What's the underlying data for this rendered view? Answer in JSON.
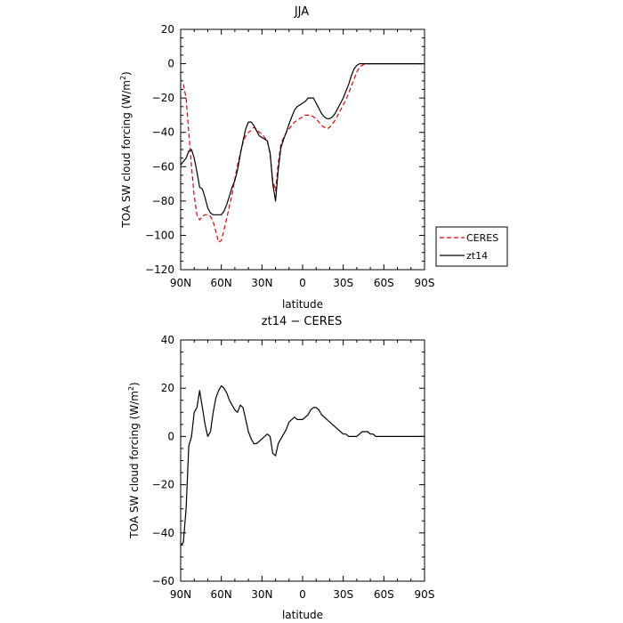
{
  "chart_data": [
    {
      "type": "line",
      "title": "JJA",
      "xlabel": "latitude",
      "ylabel": "TOA SW cloud forcing (W/m",
      "ylabel_sup": "2",
      "ylabel_end": ")",
      "xlim": [
        90,
        -90
      ],
      "ylim": [
        -120,
        20
      ],
      "xticks": [
        90,
        60,
        30,
        0,
        -30,
        -60,
        -90
      ],
      "xtick_labels": [
        "90N",
        "60N",
        "30N",
        "0",
        "30S",
        "60S",
        "90S"
      ],
      "yticks": [
        20,
        0,
        -20,
        -40,
        -60,
        -80,
        -100,
        -120
      ],
      "ytick_labels": [
        "20",
        "0",
        "−20",
        "−40",
        "−60",
        "−80",
        "−100",
        "−120"
      ],
      "legend_position": "right",
      "series": [
        {
          "name": "CERES",
          "color": "#e00000",
          "dash": "dashed",
          "x": [
            88,
            86,
            84,
            82,
            80,
            78,
            76,
            74,
            72,
            70,
            68,
            66,
            64,
            62,
            60,
            58,
            56,
            54,
            52,
            50,
            48,
            46,
            44,
            42,
            40,
            38,
            36,
            34,
            32,
            30,
            28,
            26,
            24,
            22,
            20,
            18,
            16,
            14,
            12,
            10,
            8,
            6,
            4,
            2,
            0,
            -2,
            -4,
            -6,
            -8,
            -10,
            -12,
            -14,
            -16,
            -18,
            -20,
            -22,
            -24,
            -26,
            -28,
            -30,
            -32,
            -34,
            -36,
            -38,
            -40,
            -42,
            -44,
            -46,
            -48,
            -50,
            -52,
            -54,
            -56,
            -58,
            -60,
            -62,
            -64,
            -66,
            -68,
            -70,
            -72,
            -74,
            -76,
            -78,
            -80,
            -82,
            -84,
            -86,
            -88
          ],
          "y": [
            -12,
            -20,
            -40,
            -60,
            -77,
            -88,
            -91,
            -89,
            -88,
            -88,
            -89,
            -92,
            -98,
            -104,
            -103,
            -97,
            -90,
            -83,
            -76,
            -67,
            -59,
            -52,
            -46,
            -42,
            -40,
            -39,
            -37,
            -38,
            -40,
            -41,
            -43,
            -45,
            -53,
            -68,
            -74,
            -58,
            -47,
            -43,
            -40,
            -38,
            -36,
            -34,
            -33,
            -32,
            -31,
            -30,
            -30,
            -30,
            -31,
            -32,
            -34,
            -36,
            -37,
            -38,
            -37,
            -35,
            -33,
            -30,
            -27,
            -24,
            -21,
            -17,
            -13,
            -9,
            -5,
            -2,
            -1,
            0,
            0,
            0,
            0,
            0,
            0,
            0,
            0,
            0,
            0,
            0,
            0,
            0,
            0,
            0,
            0,
            0,
            0,
            0,
            0,
            0,
            0
          ]
        },
        {
          "name": "zt14",
          "color": "#000000",
          "dash": "solid",
          "x": [
            90,
            88,
            86,
            84,
            82,
            80,
            78,
            76,
            74,
            72,
            70,
            68,
            66,
            64,
            62,
            60,
            58,
            56,
            54,
            52,
            50,
            48,
            46,
            44,
            42,
            40,
            38,
            36,
            34,
            32,
            30,
            28,
            26,
            24,
            22,
            20,
            18,
            16,
            14,
            12,
            10,
            8,
            6,
            4,
            2,
            0,
            -2,
            -4,
            -6,
            -8,
            -10,
            -12,
            -14,
            -16,
            -18,
            -20,
            -22,
            -24,
            -26,
            -28,
            -30,
            -32,
            -34,
            -36,
            -38,
            -40,
            -42,
            -44,
            -46,
            -48,
            -50,
            -52,
            -54,
            -56,
            -58,
            -60,
            -62,
            -64,
            -66,
            -68,
            -70,
            -72,
            -74,
            -76,
            -78,
            -80,
            -82,
            -84,
            -86,
            -88,
            -90
          ],
          "y": [
            -59,
            -57,
            -55,
            -51,
            -50,
            -55,
            -63,
            -72,
            -73,
            -78,
            -84,
            -87,
            -88,
            -88,
            -88,
            -88,
            -86,
            -82,
            -77,
            -72,
            -68,
            -62,
            -53,
            -45,
            -38,
            -34,
            -34,
            -36,
            -39,
            -42,
            -43,
            -44,
            -45,
            -52,
            -70,
            -80,
            -62,
            -49,
            -44,
            -40,
            -35,
            -31,
            -27,
            -25,
            -24,
            -23,
            -22,
            -20,
            -20,
            -20,
            -23,
            -26,
            -29,
            -31,
            -32,
            -32,
            -31,
            -29,
            -26,
            -23,
            -20,
            -16,
            -12,
            -7,
            -3,
            -1,
            0,
            0,
            0,
            0,
            0,
            0,
            0,
            0,
            0,
            0,
            0,
            0,
            0,
            0,
            0,
            0,
            0,
            0,
            0,
            0,
            0,
            0,
            0,
            0,
            0
          ]
        }
      ]
    },
    {
      "type": "line",
      "title": "zt14 − CERES",
      "xlabel": "latitude",
      "ylabel": "TOA SW cloud forcing (W/m",
      "ylabel_sup": "2",
      "ylabel_end": ")",
      "xlim": [
        90,
        -90
      ],
      "ylim": [
        -60,
        40
      ],
      "xticks": [
        90,
        60,
        30,
        0,
        -30,
        -60,
        -90
      ],
      "xtick_labels": [
        "90N",
        "60N",
        "30N",
        "0",
        "30S",
        "60S",
        "90S"
      ],
      "yticks": [
        40,
        20,
        0,
        -20,
        -40,
        -60
      ],
      "ytick_labels": [
        "40",
        "20",
        "0",
        "−20",
        "−40",
        "−60"
      ],
      "series": [
        {
          "name": "",
          "color": "#000000",
          "dash": "solid",
          "x": [
            90,
            88,
            86,
            84,
            82,
            80,
            78,
            76,
            74,
            72,
            70,
            68,
            66,
            64,
            62,
            60,
            58,
            56,
            54,
            52,
            50,
            48,
            46,
            44,
            42,
            40,
            38,
            36,
            34,
            32,
            30,
            28,
            26,
            24,
            22,
            20,
            18,
            16,
            14,
            12,
            10,
            8,
            6,
            4,
            2,
            0,
            -2,
            -4,
            -6,
            -8,
            -10,
            -12,
            -14,
            -16,
            -18,
            -20,
            -22,
            -24,
            -26,
            -28,
            -30,
            -32,
            -34,
            -36,
            -38,
            -40,
            -42,
            -44,
            -46,
            -48,
            -50,
            -52,
            -54,
            -56,
            -58,
            -60,
            -62,
            -64,
            -66,
            -68,
            -70,
            -72,
            -74,
            -76,
            -78,
            -80,
            -82,
            -84,
            -86,
            -88,
            -90
          ],
          "y": [
            -45,
            -44,
            -30,
            -4,
            0,
            10,
            12,
            19,
            12,
            5,
            0,
            2,
            10,
            16,
            19,
            21,
            20,
            18,
            15,
            13,
            11,
            10,
            13,
            12,
            7,
            2,
            -1,
            -3,
            -3,
            -2,
            -1,
            0,
            1,
            0,
            -7,
            -8,
            -3,
            -1,
            1,
            3,
            6,
            7,
            8,
            7,
            7,
            7,
            8,
            9,
            11,
            12,
            12,
            11,
            9,
            8,
            7,
            6,
            5,
            4,
            3,
            2,
            1,
            1,
            0,
            0,
            0,
            0,
            1,
            2,
            2,
            2,
            1,
            1,
            0,
            0,
            0,
            0,
            0,
            0,
            0,
            0,
            0,
            0,
            0,
            0,
            0,
            0,
            0,
            0,
            0,
            0,
            0
          ]
        }
      ]
    }
  ]
}
